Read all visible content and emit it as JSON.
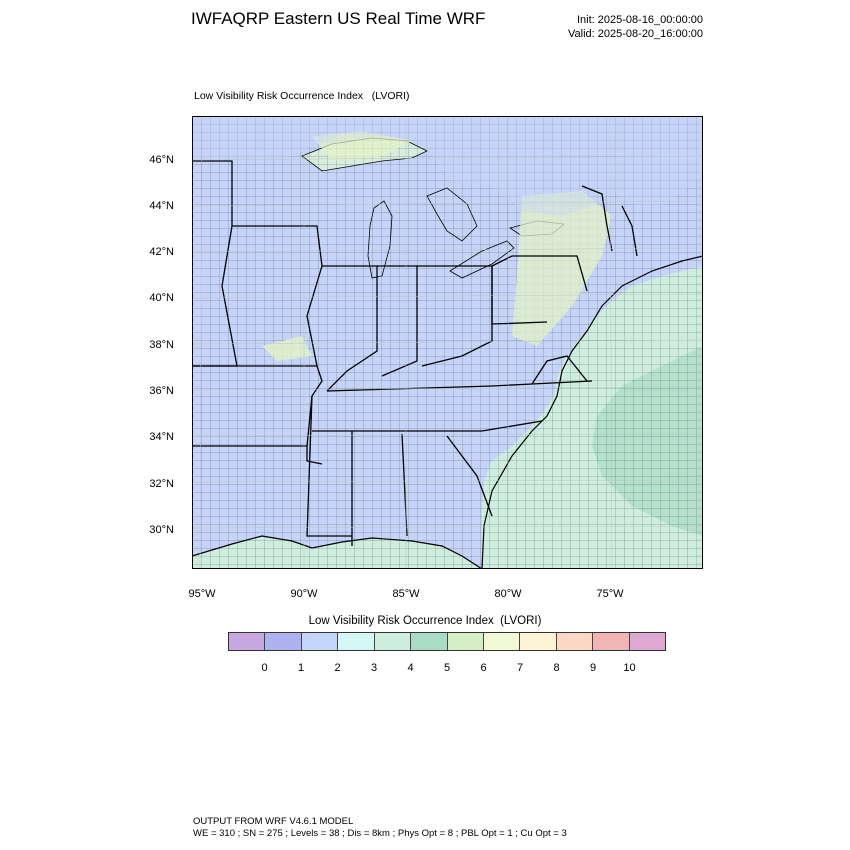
{
  "header": {
    "title": "IWFAQRP Eastern US Real Time WRF",
    "init": "Init: 2025-08-16_00:00:00",
    "valid": "Valid: 2025-08-20_16:00:00"
  },
  "map": {
    "subtitle": "Low Visibility Risk Occurrence Index   (LVORI)",
    "lat_labels": [
      "46°N",
      "44°N",
      "42°N",
      "40°N",
      "38°N",
      "36°N",
      "34°N",
      "32°N",
      "30°N"
    ],
    "lon_labels": [
      "95°W",
      "90°W",
      "85°W",
      "80°W",
      "75°W"
    ],
    "colors": {
      "land_low": "#c6d4fa",
      "land_mid": "#cdeede",
      "land_high": "#e2f2c4",
      "water": "#cdeede",
      "water_deep": "#a9dcc4",
      "border": "#000000"
    }
  },
  "legend": {
    "title": "Low Visibility Risk Occurrence Index  (LVORI)",
    "labels": [
      "0",
      "1",
      "2",
      "3",
      "4",
      "5",
      "6",
      "7",
      "8",
      "9",
      "10"
    ],
    "colors": [
      "#c7a8e0",
      "#aeb2ee",
      "#c4d5fb",
      "#d4f8f6",
      "#cdeedd",
      "#a9dcc4",
      "#d5eec4",
      "#f1f9d6",
      "#fdf4d5",
      "#fcd7c4",
      "#f1b5b5",
      "#dfa8d3"
    ]
  },
  "footer": {
    "line1": "OUTPUT FROM WRF V4.6.1 MODEL",
    "line2": "WE = 310 ; SN = 275 ; Levels = 38 ; Dis = 8km ; Phys Opt = 8 ; PBL Opt = 1 ; Cu Opt = 3"
  }
}
